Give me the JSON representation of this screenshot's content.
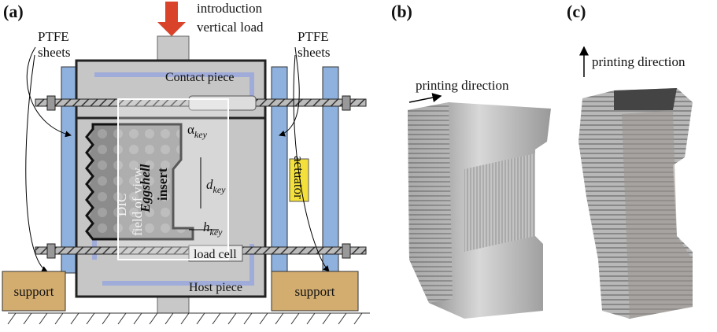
{
  "panel_a": {
    "label": "(a)",
    "load_label": [
      "introduction",
      "vertical load"
    ],
    "ptfe_left": [
      "PTFE",
      "sheets"
    ],
    "ptfe_right": [
      "PTFE",
      "sheets"
    ],
    "contact_piece": "Contact piece",
    "host_piece": "Host piece",
    "dic_label": [
      "DIC",
      "field of view"
    ],
    "insert_label": [
      "Eggshell",
      "insert"
    ],
    "alpha": {
      "symbol": "α",
      "sub": "key"
    },
    "d": {
      "symbol": "d",
      "sub": "key"
    },
    "h": {
      "symbol": "h",
      "sub": "key"
    },
    "actuator": "actuator",
    "load_cell": "load cell",
    "support_left": "support",
    "support_right": "support"
  },
  "panel_b": {
    "label": "(b)",
    "direction": "printing direction"
  },
  "panel_c": {
    "label": "(c)",
    "direction": "printing direction"
  }
}
